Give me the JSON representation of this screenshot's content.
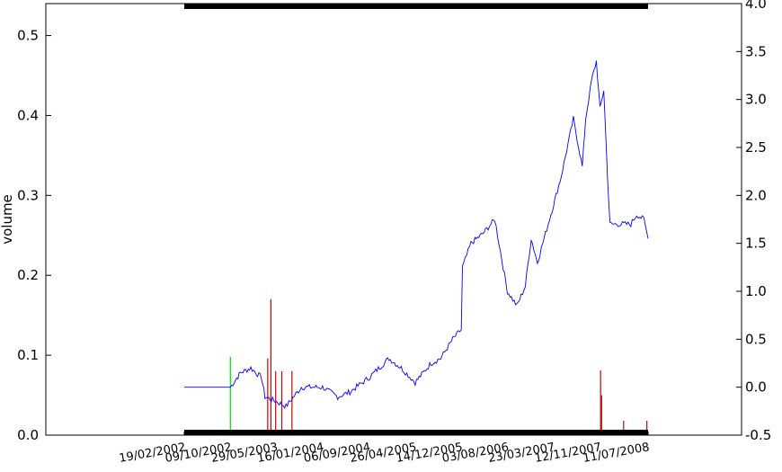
{
  "chart_data": {
    "type": "line",
    "ylabel": "volume",
    "left_axis": {
      "ticks": [
        0.0,
        0.1,
        0.2,
        0.3,
        0.4,
        0.5
      ],
      "ylim": [
        0,
        0.54
      ]
    },
    "right_axis": {
      "ticks": [
        -0.5,
        0.0,
        0.5,
        1.0,
        1.5,
        2.0,
        2.5,
        3.0,
        3.5,
        4.0
      ],
      "ylim": [
        -0.5,
        4.0
      ]
    },
    "x_ticks": [
      "19/02/2002",
      "09/10/2002",
      "29/05/2003",
      "16/01/2004",
      "06/09/2004",
      "26/04/2005",
      "14/12/2005",
      "03/08/2006",
      "23/03/2007",
      "12/11/2007",
      "11/07/2008"
    ],
    "series": [
      {
        "axis": "right",
        "color": "#0000ff",
        "points": [
          [
            "19/02/2002",
            0.0
          ],
          [
            "09/10/2002",
            0.0
          ],
          [
            "29/11/2002",
            0.15
          ],
          [
            "20/01/2003",
            0.2
          ],
          [
            "15/03/2003",
            0.1
          ],
          [
            "01/04/2003",
            -0.1
          ],
          [
            "29/05/2003",
            -0.15
          ],
          [
            "16/07/2003",
            -0.2
          ],
          [
            "01/10/2003",
            0.0
          ],
          [
            "16/01/2004",
            0.0
          ],
          [
            "01/04/2004",
            -0.1
          ],
          [
            "01/06/2004",
            -0.05
          ],
          [
            "06/09/2004",
            0.1
          ],
          [
            "15/12/2004",
            0.3
          ],
          [
            "15/02/2005",
            0.2
          ],
          [
            "26/04/2005",
            0.05
          ],
          [
            "15/07/2005",
            0.25
          ],
          [
            "01/09/2005",
            0.3
          ],
          [
            "01/11/2005",
            0.5
          ],
          [
            "14/12/2005",
            0.6
          ],
          [
            "20/12/2005",
            1.25
          ],
          [
            "01/02/2006",
            1.5
          ],
          [
            "01/04/2006",
            1.6
          ],
          [
            "01/06/2006",
            1.75
          ],
          [
            "03/08/2006",
            1.0
          ],
          [
            "20/09/2006",
            0.85
          ],
          [
            "01/11/2006",
            1.05
          ],
          [
            "01/12/2006",
            1.55
          ],
          [
            "01/01/2007",
            1.3
          ],
          [
            "23/03/2007",
            1.9
          ],
          [
            "01/05/2007",
            2.2
          ],
          [
            "01/07/2007",
            2.8
          ],
          [
            "15/08/2007",
            2.3
          ],
          [
            "01/09/2007",
            2.8
          ],
          [
            "01/10/2007",
            3.2
          ],
          [
            "25/10/2007",
            3.4
          ],
          [
            "12/11/2007",
            2.9
          ],
          [
            "01/12/2007",
            3.1
          ],
          [
            "20/12/2007",
            2.2
          ],
          [
            "01/01/2008",
            1.7
          ],
          [
            "15/04/2008",
            1.7
          ],
          [
            "15/05/2008",
            1.8
          ],
          [
            "20/06/2008",
            1.75
          ],
          [
            "11/07/2008",
            1.55
          ]
        ]
      },
      {
        "axis": "left",
        "style": "volume-bars",
        "bars": [
          [
            "09/10/2002",
            0.098,
            "#00dd00"
          ],
          [
            "15/04/2003",
            0.096,
            "#cc0000"
          ],
          [
            "01/05/2003",
            0.17,
            "#cc0000"
          ],
          [
            "25/05/2003",
            0.08,
            "#cc0000"
          ],
          [
            "25/06/2003",
            0.08,
            "#cc0000"
          ],
          [
            "15/08/2003",
            0.08,
            "#cc0000"
          ],
          [
            "15/11/2007",
            0.081,
            "#cc0000"
          ],
          [
            "20/11/2007",
            0.05,
            "#cc0000"
          ],
          [
            "10/03/2008",
            0.018,
            "#cc0000"
          ],
          [
            "05/07/2008",
            0.018,
            "#cc0000"
          ]
        ]
      }
    ]
  }
}
